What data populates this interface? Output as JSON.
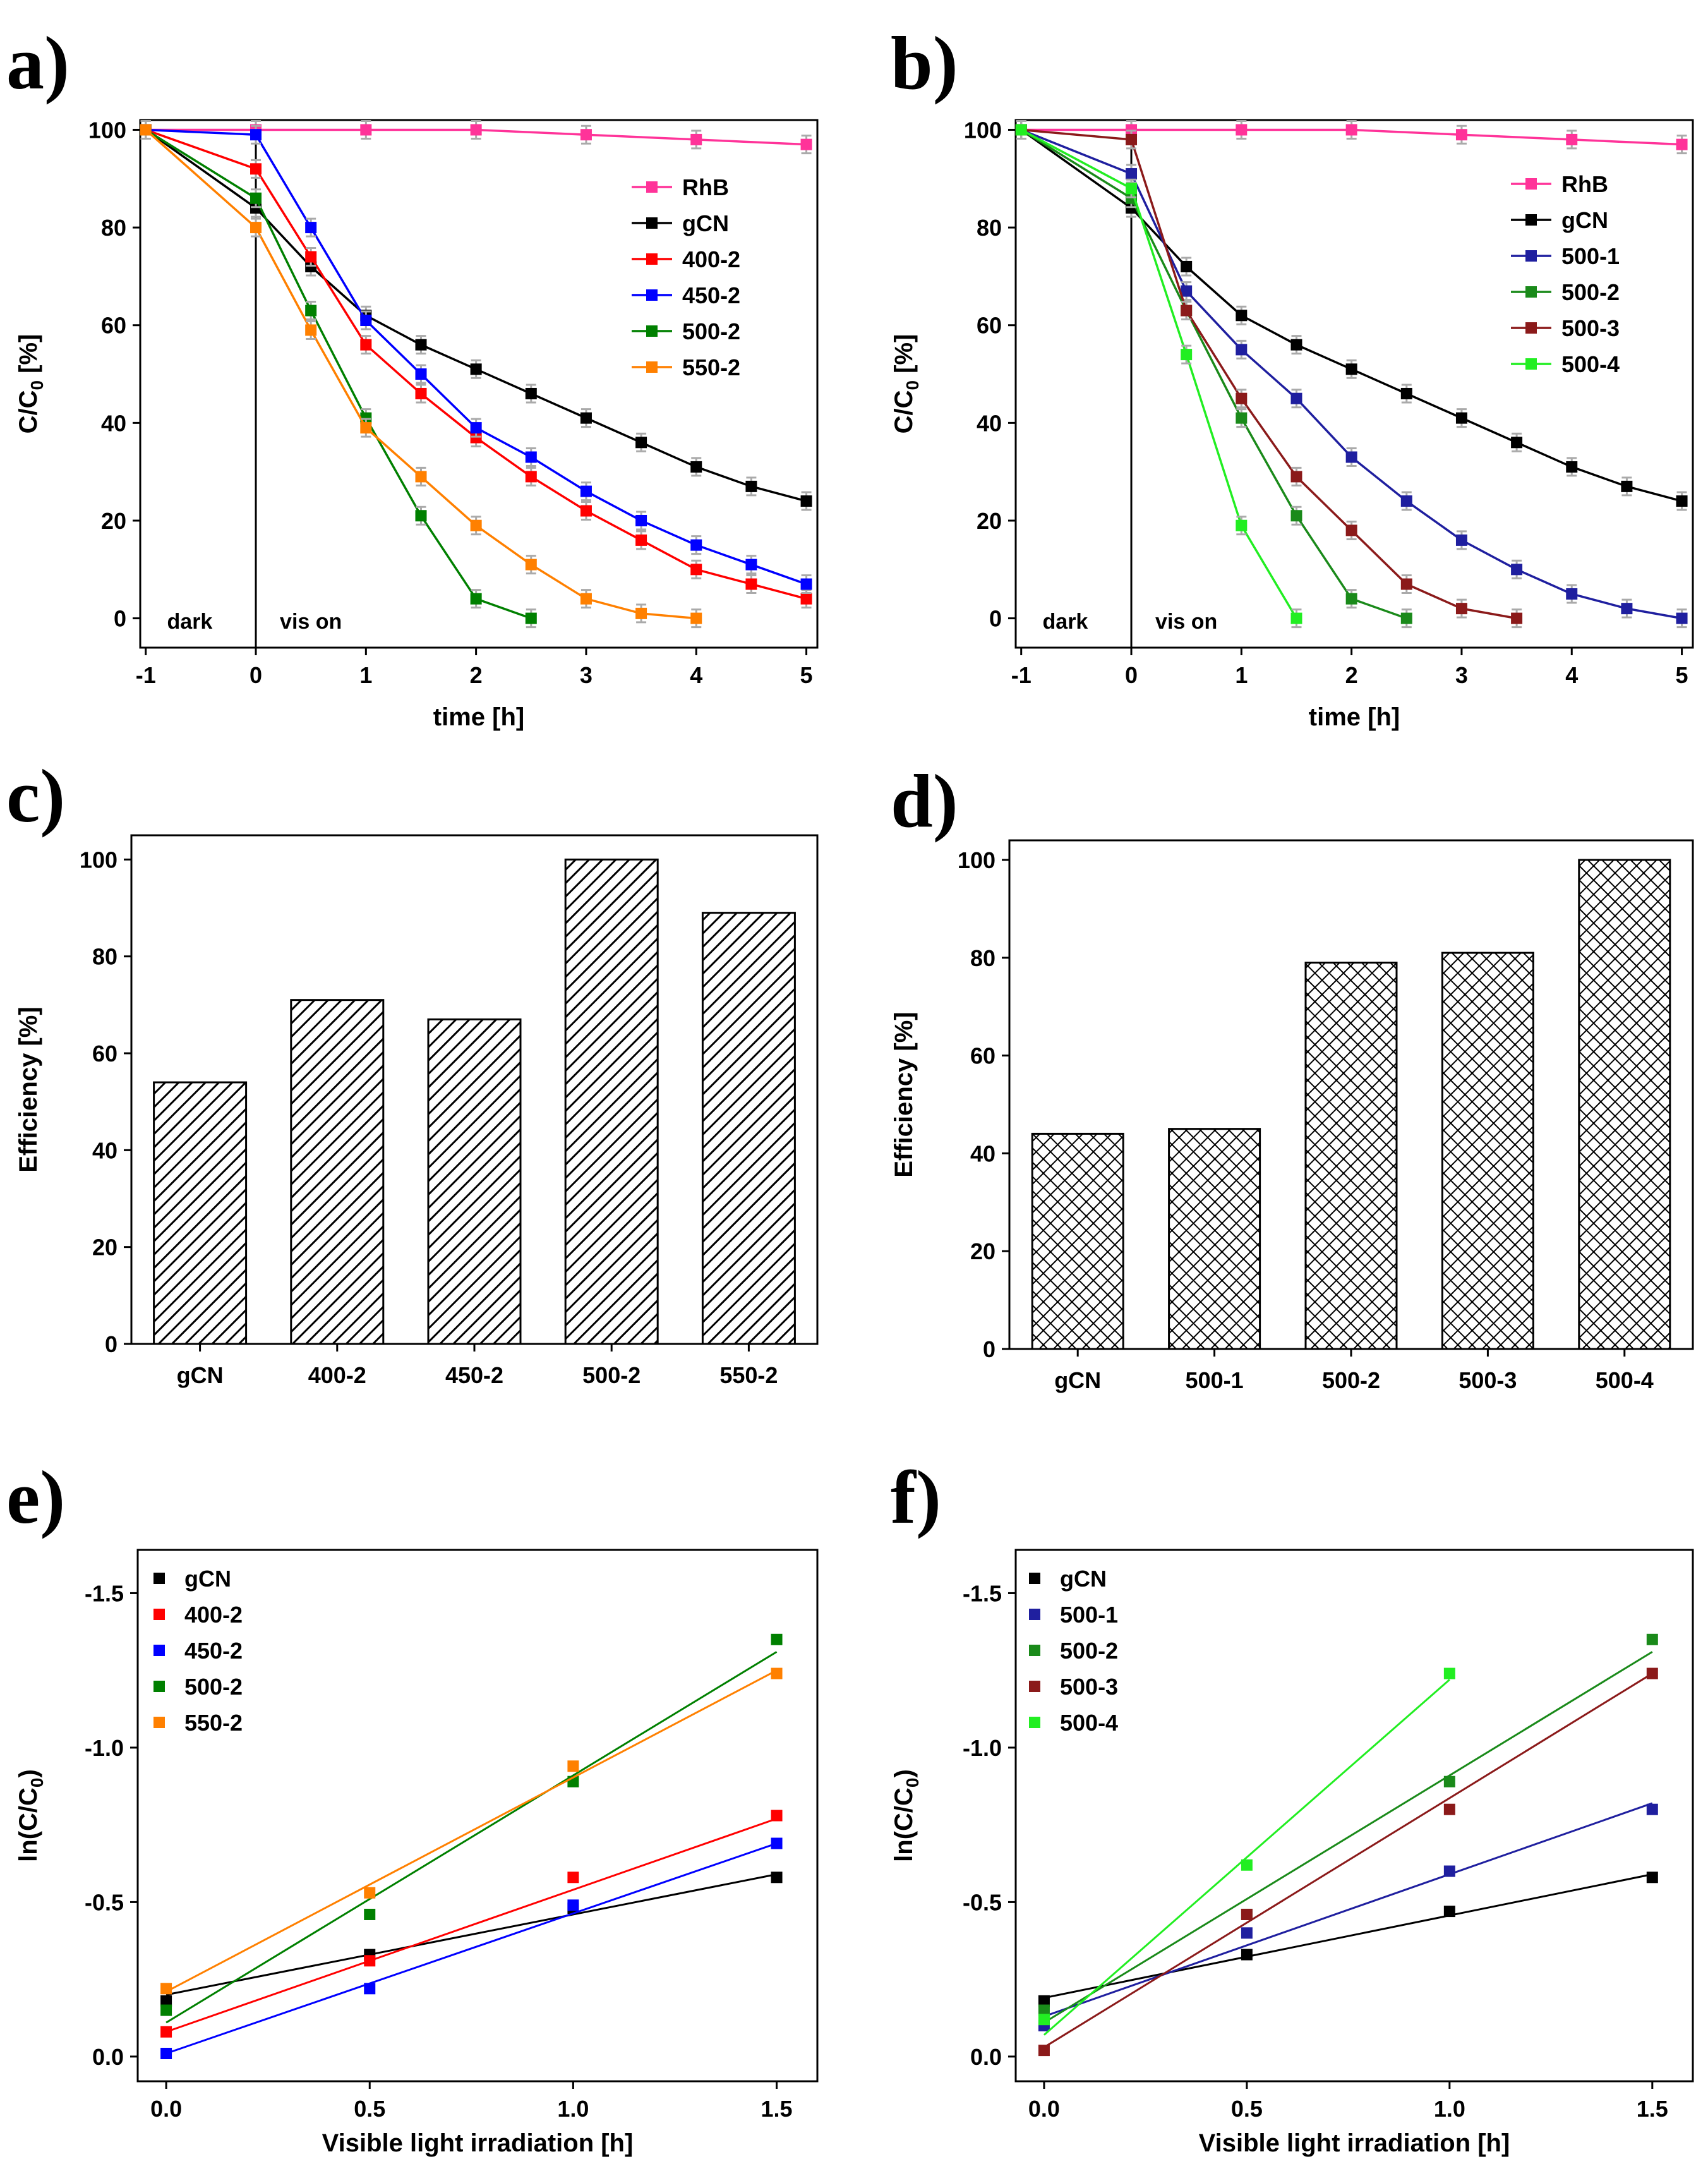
{
  "chart_data": [
    {
      "id": "a",
      "panel_label": "a)",
      "type": "line",
      "xlabel": "time [h]",
      "ylabel": "C/C0 [%]",
      "ylabel_main": "C/C",
      "ylabel_sub": "0",
      "ylabel_tail": " [%]",
      "xlim": [
        -1.05,
        5.1
      ],
      "ylim": [
        -6,
        102
      ],
      "xticks": [
        -1,
        0,
        1,
        2,
        3,
        4,
        5
      ],
      "xtick_labels": [
        "-1",
        "0",
        "1",
        "2",
        "3",
        "4",
        "5"
      ],
      "yticks": [
        0,
        20,
        40,
        60,
        80,
        100
      ],
      "ytick_labels": [
        "0",
        "20",
        "40",
        "60",
        "80",
        "100"
      ],
      "annotations": [
        "dark",
        "vis on"
      ],
      "legend": "top-right",
      "series": [
        {
          "name": "RhB",
          "color": "#ff3399",
          "x": [
            -1,
            0,
            1,
            2,
            3,
            4,
            5
          ],
          "y": [
            100,
            100,
            100,
            100,
            99,
            98,
            97
          ]
        },
        {
          "name": "gCN",
          "color": "#000000",
          "x": [
            -1,
            0,
            0.5,
            1,
            1.5,
            2,
            2.5,
            3,
            3.5,
            4,
            4.5,
            5
          ],
          "y": [
            100,
            84,
            72,
            62,
            56,
            51,
            46,
            41,
            36,
            31,
            27,
            24
          ]
        },
        {
          "name": "400-2",
          "color": "#ff0000",
          "x": [
            -1,
            0,
            0.5,
            1,
            1.5,
            2,
            2.5,
            3,
            3.5,
            4,
            4.5,
            5
          ],
          "y": [
            100,
            92,
            74,
            56,
            46,
            37,
            29,
            22,
            16,
            10,
            7,
            4
          ]
        },
        {
          "name": "450-2",
          "color": "#0000ff",
          "x": [
            -1,
            0,
            0.5,
            1,
            1.5,
            2,
            2.5,
            3,
            3.5,
            4,
            4.5,
            5
          ],
          "y": [
            100,
            99,
            80,
            61,
            50,
            39,
            33,
            26,
            20,
            15,
            11,
            7
          ]
        },
        {
          "name": "500-2",
          "color": "#008000",
          "x": [
            -1,
            0,
            0.5,
            1,
            1.5,
            2,
            2.5
          ],
          "y": [
            100,
            86,
            63,
            41,
            21,
            4,
            0
          ]
        },
        {
          "name": "550-2",
          "color": "#ff8000",
          "x": [
            -1,
            0,
            0.5,
            1,
            1.5,
            2,
            2.5,
            3,
            3.5,
            4
          ],
          "y": [
            100,
            80,
            59,
            39,
            29,
            19,
            11,
            4,
            1,
            0
          ]
        }
      ]
    },
    {
      "id": "b",
      "panel_label": "b)",
      "type": "line",
      "xlabel": "time [h]",
      "ylabel": "C/C0 [%]",
      "ylabel_main": "C/C",
      "ylabel_sub": "0",
      "ylabel_tail": " [%]",
      "xlim": [
        -1.05,
        5.1
      ],
      "ylim": [
        -6,
        102
      ],
      "xticks": [
        -1,
        0,
        1,
        2,
        3,
        4,
        5
      ],
      "xtick_labels": [
        "-1",
        "0",
        "1",
        "2",
        "3",
        "4",
        "5"
      ],
      "yticks": [
        0,
        20,
        40,
        60,
        80,
        100
      ],
      "ytick_labels": [
        "0",
        "20",
        "40",
        "60",
        "80",
        "100"
      ],
      "annotations": [
        "dark",
        "vis on"
      ],
      "legend": "top-right",
      "series": [
        {
          "name": "RhB",
          "color": "#ff3399",
          "x": [
            -1,
            0,
            1,
            2,
            3,
            4,
            5
          ],
          "y": [
            100,
            100,
            100,
            100,
            99,
            98,
            97
          ]
        },
        {
          "name": "gCN",
          "color": "#000000",
          "x": [
            -1,
            0,
            0.5,
            1,
            1.5,
            2,
            2.5,
            3,
            3.5,
            4,
            4.5,
            5
          ],
          "y": [
            100,
            84,
            72,
            62,
            56,
            51,
            46,
            41,
            36,
            31,
            27,
            24
          ]
        },
        {
          "name": "500-1",
          "color": "#1f1f9f",
          "x": [
            -1,
            0,
            0.5,
            1,
            1.5,
            2,
            2.5,
            3,
            3.5,
            4,
            4.5,
            5
          ],
          "y": [
            100,
            91,
            67,
            55,
            45,
            33,
            24,
            16,
            10,
            5,
            2,
            0
          ]
        },
        {
          "name": "500-2",
          "color": "#1a8a1a",
          "x": [
            -1,
            0,
            0.5,
            1,
            1.5,
            2,
            2.5
          ],
          "y": [
            100,
            86,
            63,
            41,
            21,
            4,
            0
          ]
        },
        {
          "name": "500-3",
          "color": "#8b1a1a",
          "x": [
            -1,
            0,
            0.5,
            1,
            1.5,
            2,
            2.5,
            3,
            3.5
          ],
          "y": [
            100,
            98,
            63,
            45,
            29,
            18,
            7,
            2,
            0
          ]
        },
        {
          "name": "500-4",
          "color": "#22ee22",
          "x": [
            -1,
            0,
            0.5,
            1,
            1.5
          ],
          "y": [
            100,
            88,
            54,
            19,
            0
          ]
        }
      ]
    },
    {
      "id": "c",
      "panel_label": "c)",
      "type": "bar",
      "xlabel": "",
      "ylabel": "Efficiency [%]",
      "ylim": [
        0,
        105
      ],
      "yticks": [
        0,
        20,
        40,
        60,
        80,
        100
      ],
      "ytick_labels": [
        "0",
        "20",
        "40",
        "60",
        "80",
        "100"
      ],
      "categories": [
        "gCN",
        "400-2",
        "450-2",
        "500-2",
        "550-2"
      ],
      "values": [
        54,
        71,
        67,
        100,
        89
      ],
      "pattern": "diagonal-hatch"
    },
    {
      "id": "d",
      "panel_label": "d)",
      "type": "bar",
      "xlabel": "",
      "ylabel": "Efficiency [%]",
      "ylim": [
        0,
        104
      ],
      "yticks": [
        0,
        20,
        40,
        60,
        80,
        100
      ],
      "ytick_labels": [
        "0",
        "20",
        "40",
        "60",
        "80",
        "100"
      ],
      "categories": [
        "gCN",
        "500-1",
        "500-2",
        "500-3",
        "500-4"
      ],
      "values": [
        44,
        45,
        79,
        81,
        100
      ],
      "pattern": "cross-hatch"
    },
    {
      "id": "e",
      "panel_label": "e)",
      "type": "scatter",
      "xlabel": "Visible light irradiation [h]",
      "ylabel": "ln(C/C0)",
      "ylabel_main": "ln(C/C",
      "ylabel_sub": "0",
      "ylabel_tail": ")",
      "xlim": [
        -0.07,
        1.6
      ],
      "ylim": [
        0.08,
        -1.64
      ],
      "xticks": [
        0,
        0.5,
        1,
        1.5
      ],
      "xtick_labels": [
        "0.0",
        "0.5",
        "1.0",
        "1.5"
      ],
      "yticks": [
        0,
        -0.5,
        -1,
        -1.5
      ],
      "ytick_labels": [
        "0.0",
        "-0.5",
        "-1.0",
        "-1.5"
      ],
      "legend": "top-left",
      "series": [
        {
          "name": "gCN",
          "color": "#000000",
          "x": [
            0,
            0.5,
            1,
            1.5
          ],
          "y": [
            -0.18,
            -0.33,
            -0.48,
            -0.58
          ],
          "fit": [
            -0.2,
            -0.59
          ]
        },
        {
          "name": "400-2",
          "color": "#ff0000",
          "x": [
            0,
            0.5,
            1,
            1.5
          ],
          "y": [
            -0.08,
            -0.31,
            -0.58,
            -0.78
          ],
          "fit": [
            -0.08,
            -0.77
          ]
        },
        {
          "name": "450-2",
          "color": "#0000ff",
          "x": [
            0,
            0.5,
            1,
            1.5
          ],
          "y": [
            -0.01,
            -0.22,
            -0.49,
            -0.69
          ],
          "fit": [
            -0.01,
            -0.69
          ]
        },
        {
          "name": "500-2",
          "color": "#008000",
          "x": [
            0,
            0.5,
            1,
            1.5
          ],
          "y": [
            -0.15,
            -0.46,
            -0.89,
            -1.35
          ],
          "fit": [
            -0.11,
            -1.31
          ]
        },
        {
          "name": "550-2",
          "color": "#ff8000",
          "x": [
            0,
            0.5,
            1,
            1.5
          ],
          "y": [
            -0.22,
            -0.53,
            -0.94,
            -1.24
          ],
          "fit": [
            -0.21,
            -1.25
          ]
        }
      ]
    },
    {
      "id": "f",
      "panel_label": "f)",
      "type": "scatter",
      "xlabel": "Visible light irradiation [h]",
      "ylabel": "ln(C/C0)",
      "ylabel_main": "ln(C/C",
      "ylabel_sub": "0",
      "ylabel_tail": ")",
      "xlim": [
        -0.07,
        1.6
      ],
      "ylim": [
        0.08,
        -1.64
      ],
      "xticks": [
        0,
        0.5,
        1,
        1.5
      ],
      "xtick_labels": [
        "0.0",
        "0.5",
        "1.0",
        "1.5"
      ],
      "yticks": [
        0,
        -0.5,
        -1,
        -1.5
      ],
      "ytick_labels": [
        "0.0",
        "-0.5",
        "-1.0",
        "-1.5"
      ],
      "legend": "top-left",
      "series": [
        {
          "name": "gCN",
          "color": "#000000",
          "x": [
            0,
            0.5,
            1,
            1.5
          ],
          "y": [
            -0.18,
            -0.33,
            -0.47,
            -0.58
          ],
          "fit": [
            -0.19,
            -0.59
          ],
          "fit_x": [
            0,
            1.5
          ]
        },
        {
          "name": "500-1",
          "color": "#1f1f9f",
          "x": [
            0,
            0.5,
            1,
            1.5
          ],
          "y": [
            -0.1,
            -0.4,
            -0.6,
            -0.8
          ],
          "fit": [
            -0.13,
            -0.82
          ],
          "fit_x": [
            0,
            1.5
          ]
        },
        {
          "name": "500-2",
          "color": "#1a8a1a",
          "x": [
            0,
            0.5,
            1,
            1.5
          ],
          "y": [
            -0.15,
            -0.46,
            -0.89,
            -1.35
          ],
          "fit": [
            -0.11,
            -1.31
          ],
          "fit_x": [
            0,
            1.5
          ]
        },
        {
          "name": "500-3",
          "color": "#8b1a1a",
          "x": [
            0,
            0.5,
            1,
            1.5
          ],
          "y": [
            -0.02,
            -0.46,
            -0.8,
            -1.24
          ],
          "fit": [
            -0.03,
            -1.24
          ],
          "fit_x": [
            0,
            1.5
          ]
        },
        {
          "name": "500-4",
          "color": "#22ee22",
          "x": [
            0,
            0.5,
            1
          ],
          "y": [
            -0.12,
            -0.62,
            -1.24
          ],
          "fit": [
            -0.07,
            -1.22
          ],
          "fit_x": [
            0,
            1.0
          ]
        }
      ]
    }
  ]
}
